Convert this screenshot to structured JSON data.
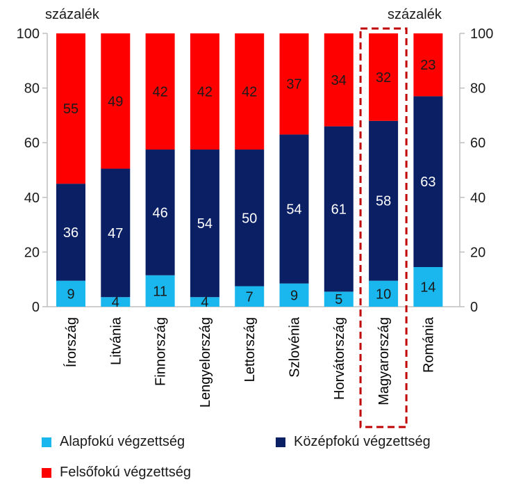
{
  "chart_data": {
    "type": "bar",
    "stacked": true,
    "y_unit_left": "százalék",
    "y_unit_right": "százalék",
    "ylim": [
      0,
      100
    ],
    "yticks": [
      "0",
      "20",
      "40",
      "60",
      "80",
      "100"
    ],
    "categories": [
      "Írország",
      "Litvánia",
      "Finnország",
      "Lengyelország",
      "Lettország",
      "Szlovénia",
      "Horvátország",
      "Magyarország",
      "Románia"
    ],
    "highlighted_category": "Magyarország",
    "series": [
      {
        "name": "Alapfokú végzettség",
        "color": "#19b7ee",
        "label_color": "#1a1a1a",
        "values": [
          9.5,
          3.5,
          11.5,
          3.5,
          7.5,
          8.5,
          5.5,
          9.5,
          14.5
        ],
        "labels": [
          "9",
          "4",
          "11",
          "4",
          "7",
          "9",
          "5",
          "10",
          "14"
        ]
      },
      {
        "name": "Középfokú végzettség",
        "color": "#0a1f64",
        "label_color": "#ffffff",
        "values": [
          35.5,
          47,
          46,
          54,
          50,
          54.5,
          60.5,
          58.5,
          62.5
        ],
        "labels": [
          "36",
          "47",
          "46",
          "54",
          "50",
          "54",
          "61",
          "58",
          "63"
        ]
      },
      {
        "name": "Felsőfokú végzettség",
        "color": "#ff0000",
        "label_color": "#1a1a1a",
        "values": [
          55,
          49.5,
          42.5,
          42.5,
          42.5,
          37,
          34,
          32,
          23
        ],
        "labels": [
          "55",
          "49",
          "42",
          "42",
          "42",
          "37",
          "34",
          "32",
          "23"
        ]
      }
    ],
    "highlight_color": "#c00000",
    "axis_color": "#bfbfbf",
    "legend_position": "bottom"
  }
}
